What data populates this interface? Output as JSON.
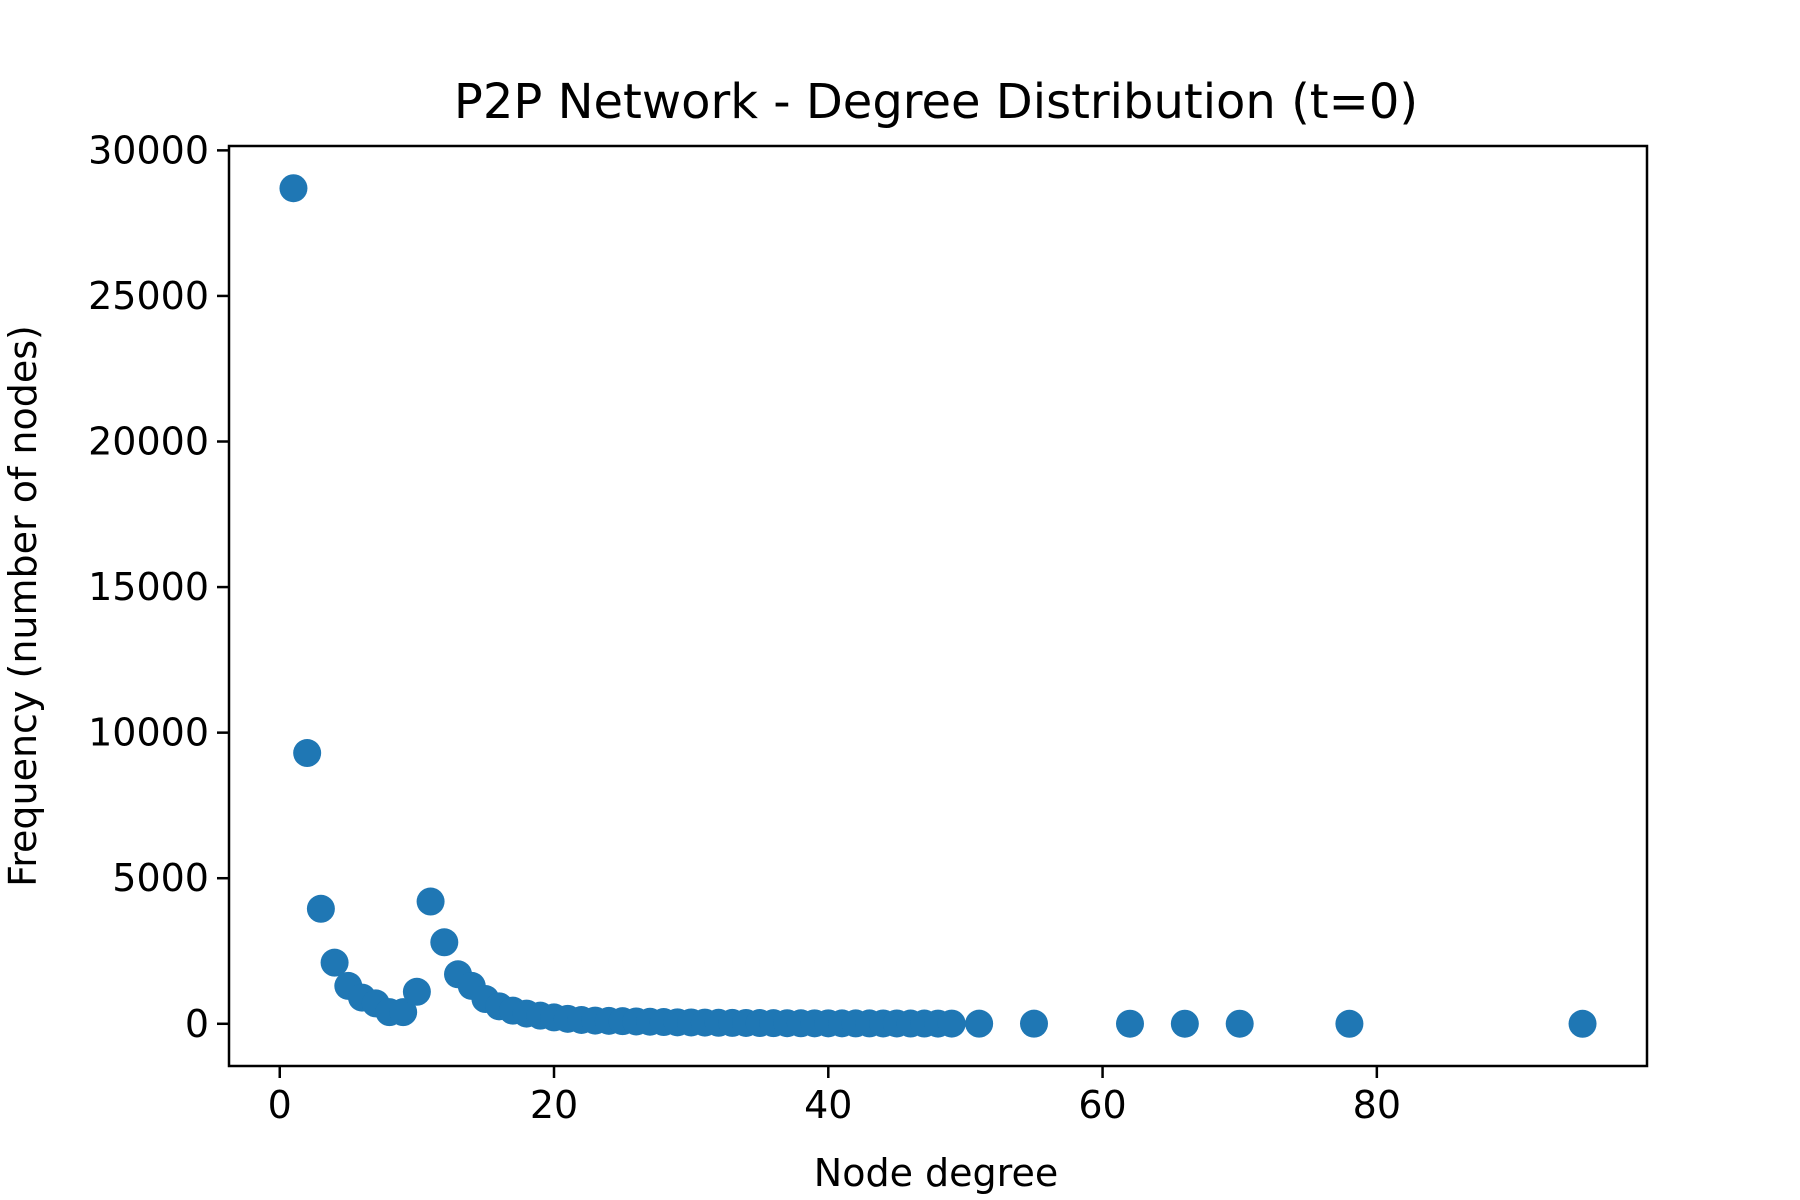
{
  "chart_data": {
    "type": "scatter",
    "title": "P2P Network - Degree Distribution (t=0)",
    "xlabel": "Node degree",
    "ylabel": "Frequency (number of nodes)",
    "xlim": [
      -3.7,
      99.7
    ],
    "ylim": [
      -1450,
      30150
    ],
    "xticks": [
      0,
      20,
      40,
      60,
      80
    ],
    "yticks": [
      0,
      5000,
      10000,
      15000,
      20000,
      25000,
      30000
    ],
    "grid": false,
    "marker_color": "#1f77b4",
    "x": [
      1,
      2,
      3,
      4,
      5,
      6,
      7,
      8,
      9,
      10,
      11,
      12,
      13,
      14,
      15,
      16,
      17,
      18,
      19,
      20,
      21,
      22,
      23,
      24,
      25,
      26,
      27,
      28,
      29,
      30,
      31,
      32,
      33,
      34,
      35,
      36,
      37,
      38,
      39,
      40,
      41,
      42,
      43,
      44,
      45,
      46,
      47,
      48,
      49,
      51,
      55,
      62,
      66,
      70,
      78,
      95
    ],
    "y": [
      28700,
      9300,
      3950,
      2100,
      1300,
      900,
      700,
      400,
      400,
      1100,
      4200,
      2800,
      1700,
      1300,
      850,
      600,
      450,
      350,
      280,
      220,
      170,
      130,
      110,
      100,
      90,
      80,
      70,
      60,
      50,
      45,
      40,
      35,
      30,
      28,
      25,
      22,
      20,
      18,
      16,
      15,
      14,
      13,
      12,
      11,
      10,
      9,
      8,
      7,
      6,
      5,
      4,
      3,
      2,
      2,
      1,
      1
    ]
  }
}
